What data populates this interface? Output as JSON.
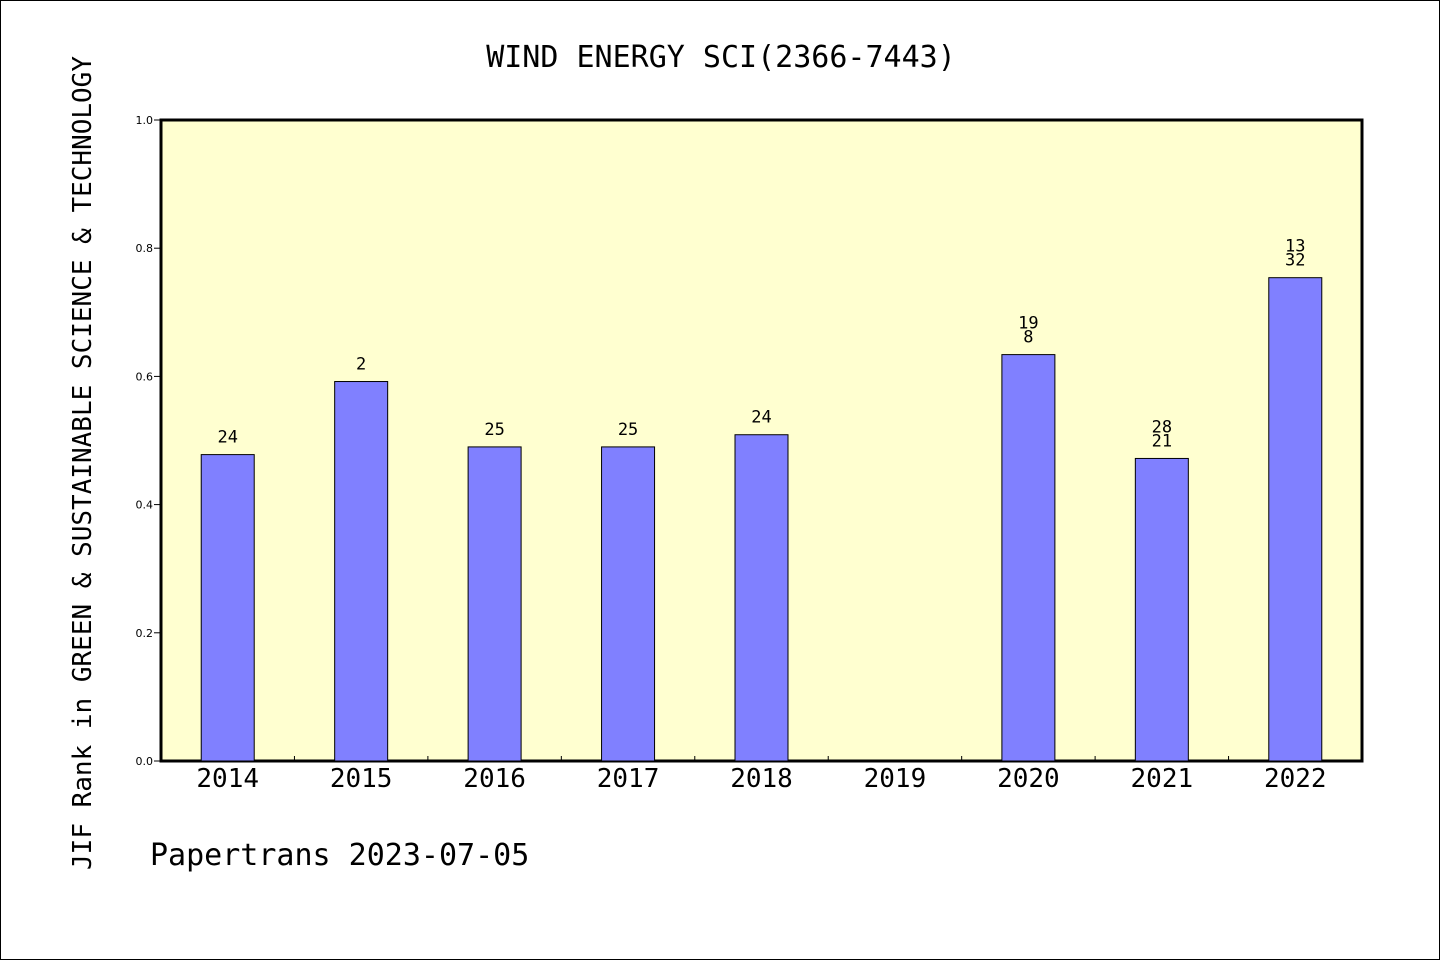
{
  "chart_data": {
    "type": "bar",
    "title": "WIND ENERGY SCI(2366-7443)",
    "xlabel": "",
    "ylabel": "JIF Rank in GREEN & SUSTAINABLE SCIENCE & TECHNOLOGY",
    "ylim": [
      0,
      1.0
    ],
    "yticks": [
      "0.0",
      "0.2",
      "0.4",
      "0.6",
      "0.8",
      "1.0"
    ],
    "ytick_values": [
      0,
      0.2,
      0.4,
      0.6,
      0.8,
      1.0
    ],
    "categories": [
      "2014",
      "2015",
      "2016",
      "2017",
      "2018",
      "2019",
      "2020",
      "2021",
      "2022"
    ],
    "values": [
      0.478,
      0.592,
      0.49,
      0.49,
      0.509,
      null,
      0.634,
      0.472,
      0.754
    ],
    "bar_labels": [
      [
        "24"
      ],
      [
        "2"
      ],
      [
        "25"
      ],
      [
        "25"
      ],
      [
        "24"
      ],
      [],
      [
        "19",
        "8"
      ],
      [
        "28",
        "21"
      ],
      [
        "13",
        "32"
      ]
    ],
    "grid": false,
    "colors": {
      "bar": "#8080ff",
      "plot_background": "#ffffd0",
      "axis": "#000000"
    }
  },
  "footer": {
    "credit": "Papertrans 2023-07-05"
  }
}
